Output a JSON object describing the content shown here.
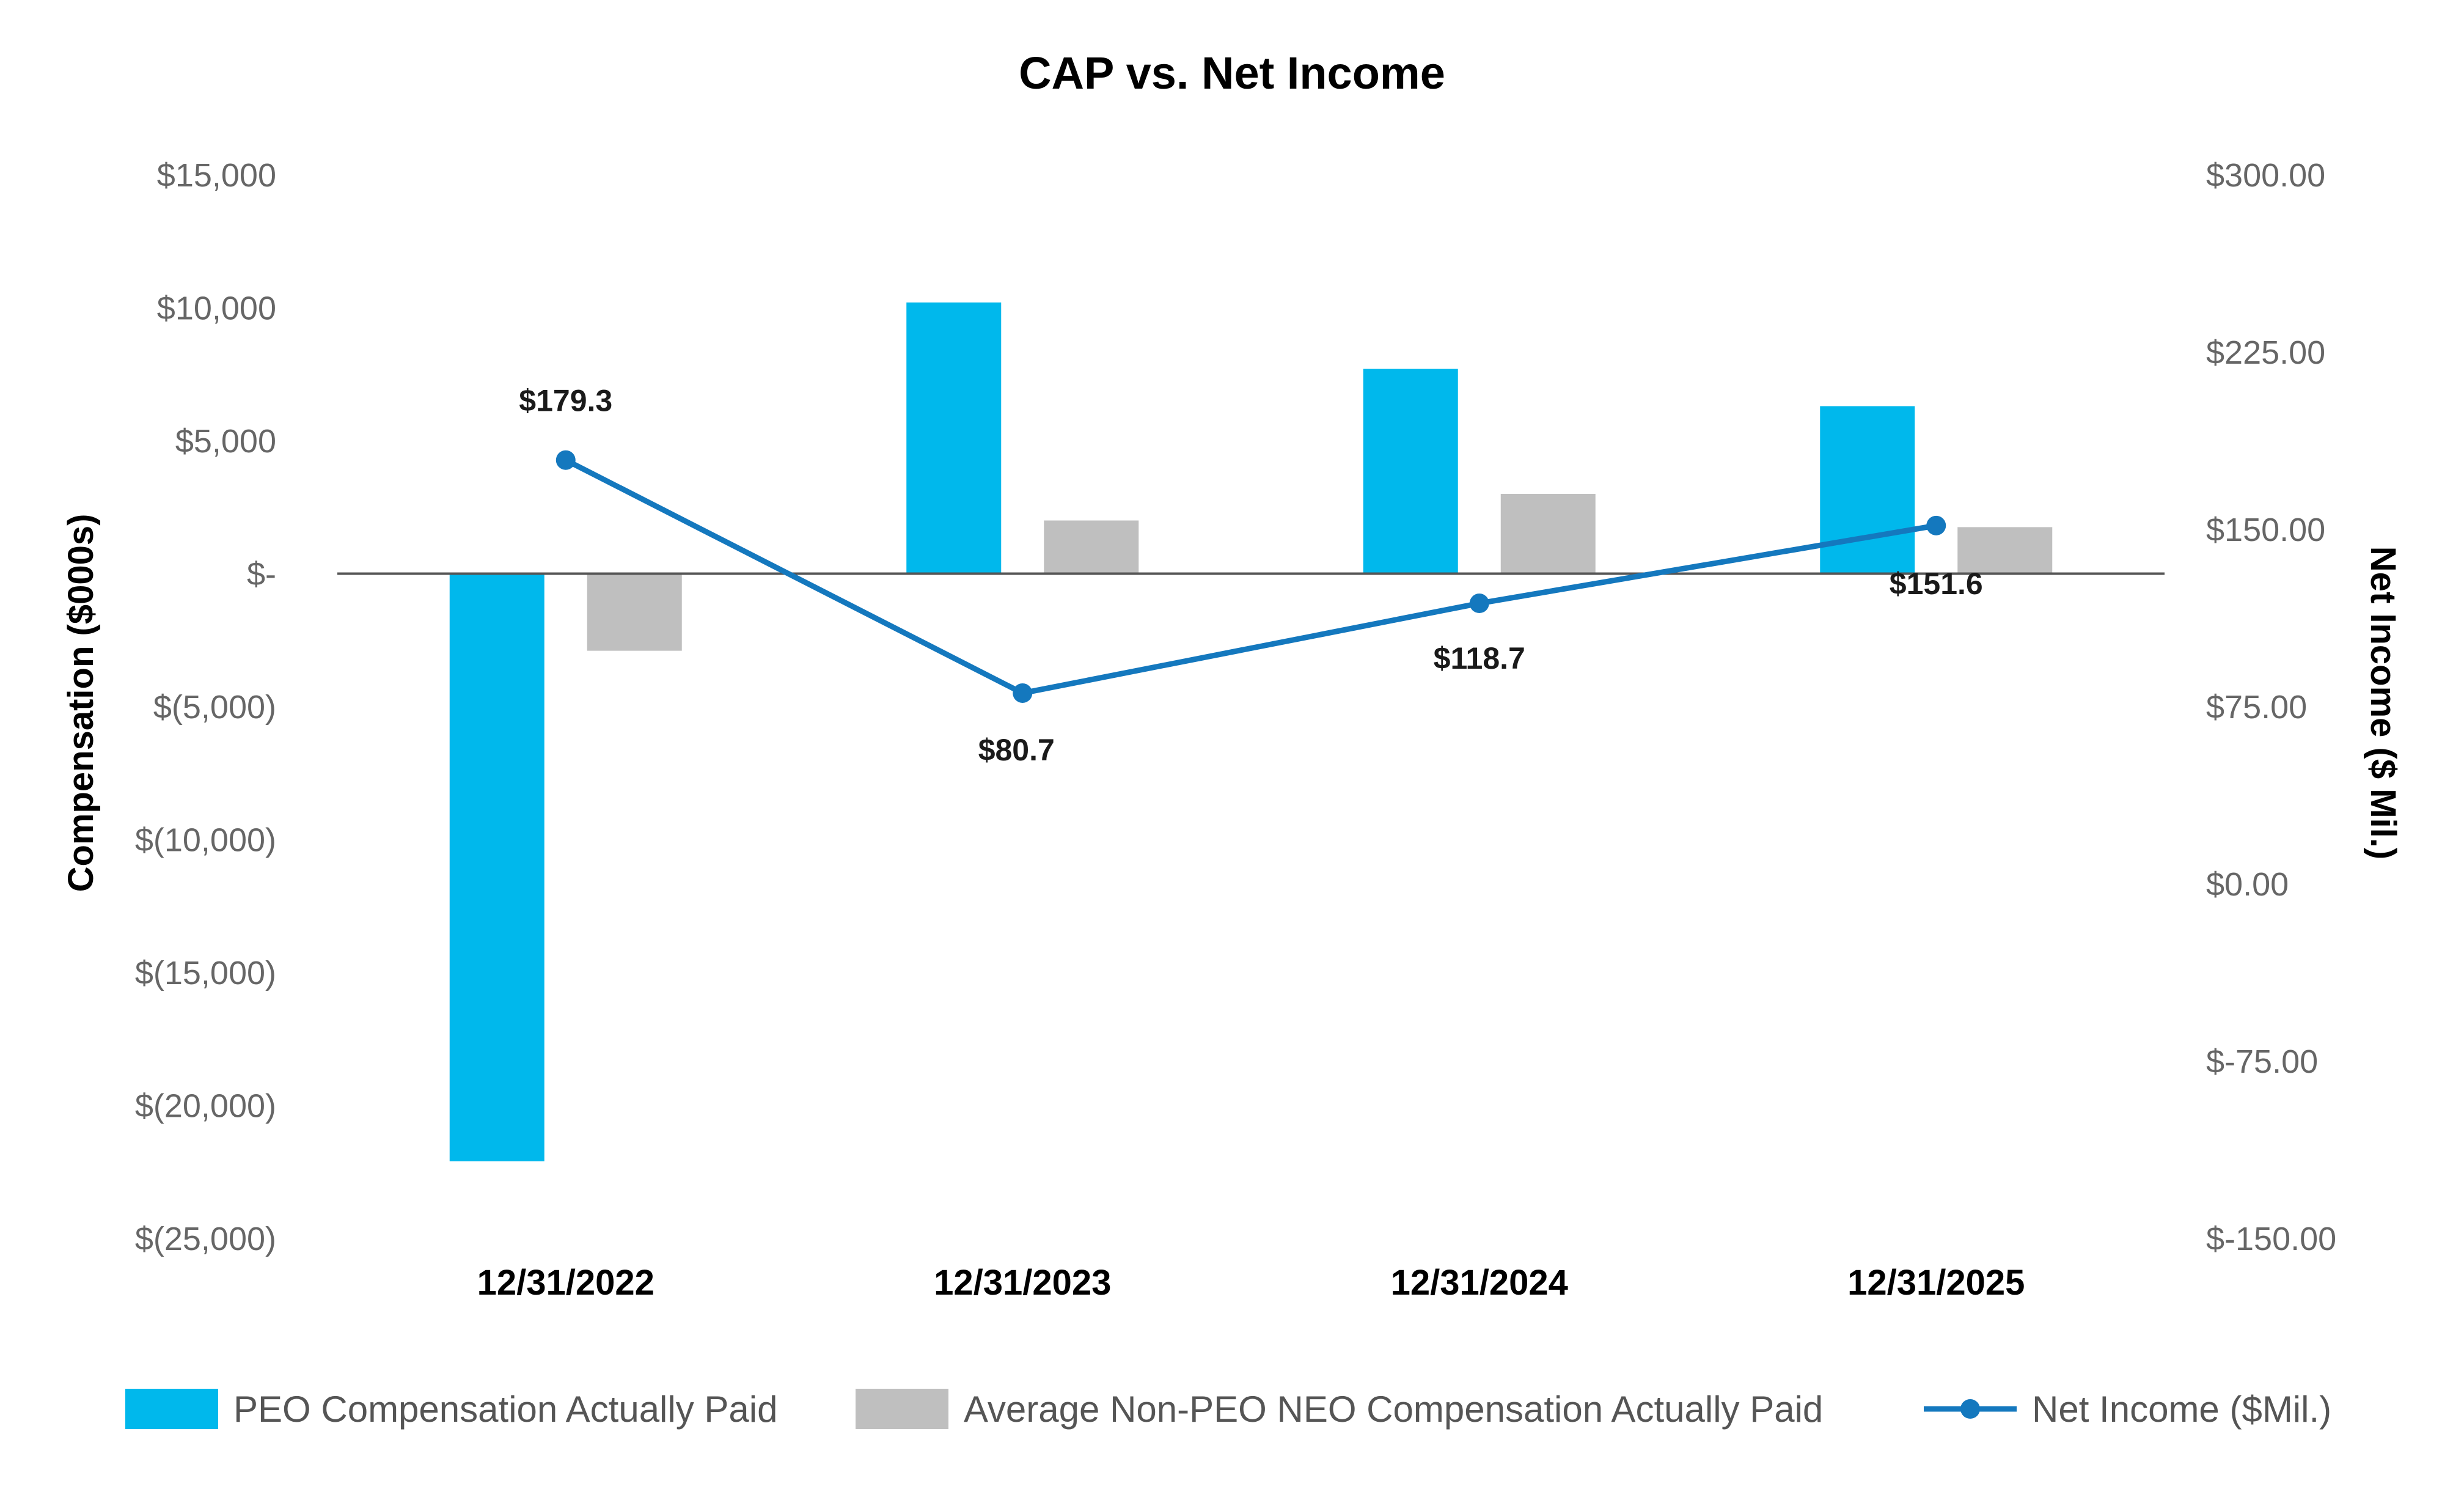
{
  "chart_data": {
    "type": "bar",
    "title": "CAP vs. Net Income",
    "categories": [
      "12/31/2022",
      "12/31/2023",
      "12/31/2024",
      "12/31/2025"
    ],
    "ylabel": "Compensation ($000s)",
    "y2label": "Net Income ($ Mil.)",
    "ylim": [
      -25000,
      15000
    ],
    "y2lim": [
      -150,
      300
    ],
    "yticks": [
      "$15,000",
      "$10,000",
      "$5,000",
      "$-",
      "$(5,000)",
      "$(10,000)",
      "$(15,000)",
      "$(20,000)",
      "$(25,000)"
    ],
    "y2ticks": [
      "$300.00",
      "$225.00",
      "$150.00",
      "$75.00",
      "$0.00",
      "$-75.00",
      "$-150.00"
    ],
    "series": [
      {
        "name": "PEO Compensation Actually Paid",
        "type": "bar",
        "axis": "left",
        "color": "#00b8ec",
        "values": [
          -22100,
          10200,
          7700,
          6300
        ]
      },
      {
        "name": "Average Non-PEO NEO Compensation Actually Paid",
        "type": "bar",
        "axis": "left",
        "color": "#bfbfbf",
        "values": [
          -2900,
          2000,
          3000,
          1750
        ]
      },
      {
        "name": "Net Income ($Mil.)",
        "type": "line",
        "axis": "right",
        "color": "#1478be",
        "values": [
          179.3,
          80.7,
          118.7,
          151.6
        ],
        "labels": [
          "$179.3",
          "$80.7",
          "$118.7",
          "$151.6"
        ]
      }
    ],
    "legend": "bottom",
    "grid": false
  }
}
